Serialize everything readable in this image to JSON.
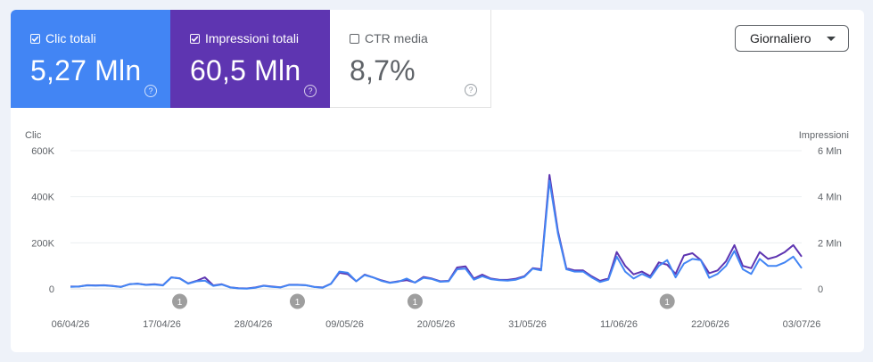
{
  "metrics": [
    {
      "label": "Clic totali",
      "value": "5,27 Mln",
      "checked": true,
      "color": "#4285f4"
    },
    {
      "label": "Impressioni totali",
      "value": "60,5 Mln",
      "checked": true,
      "color": "#5e35b1"
    },
    {
      "label": "CTR media",
      "value": "8,7%",
      "checked": false
    }
  ],
  "help_glyph": "?",
  "granularity": {
    "selected": "Giornaliero"
  },
  "chart_data": {
    "type": "line",
    "x_ticks": [
      "06/04/26",
      "17/04/26",
      "28/04/26",
      "09/05/26",
      "20/05/26",
      "31/05/26",
      "11/06/26",
      "22/06/26",
      "03/07/26"
    ],
    "left_axis": {
      "label": "Clic",
      "ticks": [
        "0",
        "200K",
        "400K",
        "600K"
      ],
      "range": [
        0,
        600000
      ]
    },
    "right_axis": {
      "label": "Impressioni",
      "ticks": [
        "0",
        "2 Mln",
        "4 Mln",
        "6 Mln"
      ],
      "range": [
        0,
        6000000
      ]
    },
    "grid": true,
    "series": [
      {
        "name": "Impressioni totali",
        "axis": "right",
        "color": "#5e35b1",
        "values": [
          0.1,
          0.1,
          0.16,
          0.15,
          0.16,
          0.13,
          0.09,
          0.2,
          0.23,
          0.18,
          0.2,
          0.16,
          0.5,
          0.46,
          0.24,
          0.35,
          0.5,
          0.15,
          0.2,
          0.07,
          0.03,
          0.02,
          0.06,
          0.14,
          0.1,
          0.07,
          0.18,
          0.18,
          0.16,
          0.09,
          0.06,
          0.23,
          0.7,
          0.64,
          0.33,
          0.62,
          0.5,
          0.37,
          0.27,
          0.33,
          0.38,
          0.28,
          0.52,
          0.45,
          0.33,
          0.35,
          0.93,
          0.98,
          0.45,
          0.62,
          0.45,
          0.4,
          0.39,
          0.44,
          0.55,
          0.9,
          0.85,
          4.95,
          2.5,
          0.9,
          0.8,
          0.8,
          0.55,
          0.35,
          0.45,
          1.6,
          1.0,
          0.63,
          0.75,
          0.55,
          1.15,
          1.05,
          0.65,
          1.45,
          1.55,
          1.25,
          0.68,
          0.8,
          1.2,
          1.9,
          1.0,
          0.9,
          1.6,
          1.3,
          1.4,
          1.6,
          1.9,
          1.4
        ]
      },
      {
        "name": "Clic totali",
        "axis": "left",
        "color": "#4285f4",
        "values": [
          9000,
          10000,
          15000,
          14000,
          15000,
          12000,
          8000,
          20000,
          22000,
          17000,
          19000,
          15000,
          50000,
          45000,
          23000,
          33000,
          36000,
          13000,
          19000,
          6000,
          2000,
          1000,
          5000,
          13000,
          9000,
          6000,
          17000,
          17000,
          16000,
          8000,
          5000,
          22000,
          75000,
          70000,
          33000,
          60000,
          50000,
          35000,
          26000,
          31000,
          45000,
          27000,
          48000,
          43000,
          31000,
          33000,
          85000,
          88000,
          40000,
          55000,
          42000,
          38000,
          36000,
          40000,
          52000,
          88000,
          80000,
          470000,
          240000,
          85000,
          75000,
          75000,
          50000,
          30000,
          40000,
          140000,
          75000,
          45000,
          65000,
          48000,
          100000,
          125000,
          50000,
          110000,
          130000,
          125000,
          48000,
          65000,
          100000,
          165000,
          85000,
          65000,
          130000,
          100000,
          100000,
          115000,
          140000,
          90000
        ]
      }
    ],
    "annotations": [
      {
        "x_index": 13,
        "label": "1"
      },
      {
        "x_index": 27,
        "label": "1"
      },
      {
        "x_index": 41,
        "label": "1"
      },
      {
        "x_index": 71,
        "label": "1"
      }
    ]
  }
}
